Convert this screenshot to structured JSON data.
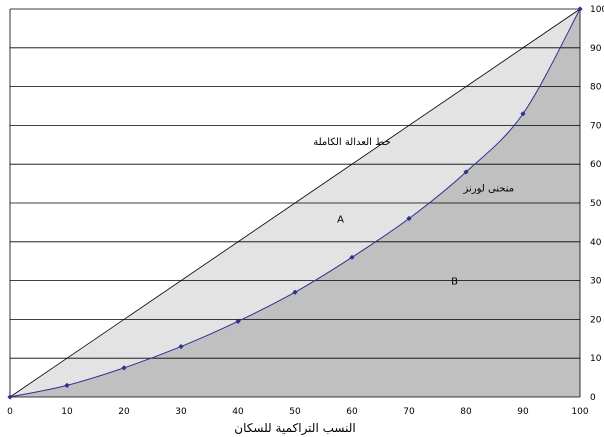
{
  "chart_data": {
    "type": "line",
    "title": "",
    "xlabel": "النسب التراكمية للسكان",
    "ylabel": "",
    "xlim": [
      0,
      100
    ],
    "ylim": [
      0,
      100
    ],
    "x_ticks": [
      0,
      10,
      20,
      30,
      40,
      50,
      60,
      70,
      80,
      90,
      100
    ],
    "y_ticks": [
      0,
      10,
      20,
      30,
      40,
      50,
      60,
      70,
      80,
      90,
      100
    ],
    "grid": "horizontal",
    "series": [
      {
        "name": "",
        "x": [
          0,
          100
        ],
        "values": [
          0,
          100
        ]
      },
      {
        "name": "",
        "x": [
          0,
          10,
          20,
          30,
          40,
          50,
          60,
          70,
          80,
          90,
          100
        ],
        "values": [
          0,
          3,
          7.5,
          13,
          19.5,
          27,
          36,
          46,
          58,
          73,
          100
        ]
      }
    ],
    "annotations": [
      {
        "text": "خط العدالة الكاملة",
        "x": 60,
        "y": 65
      },
      {
        "text": "منحنى لورنز",
        "x": 84,
        "y": 53
      },
      {
        "text": "A",
        "x": 58,
        "y": 45
      },
      {
        "text": "B",
        "x": 78,
        "y": 29
      }
    ],
    "colors": {
      "area_a": "#e3e3e3",
      "area_b": "#c0c0c0",
      "curve": "#2e3192",
      "equality_line": "#000000",
      "grid": "#000000"
    }
  }
}
